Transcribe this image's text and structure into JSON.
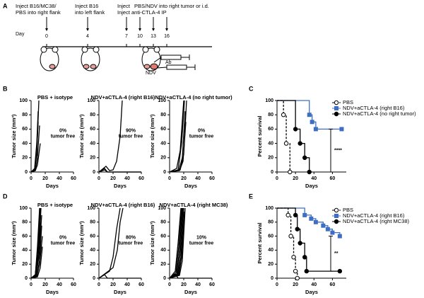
{
  "panel_a": {
    "label": "A",
    "notes": [
      "Inject B16/MC38/",
      "PBS into right flank",
      "Inject B16",
      "into left flank",
      "Inject",
      "PBS/NDV into right tumor or i.d.",
      "Inject anti-CTLA-4 IP"
    ],
    "day_label": "Day",
    "days": [
      0,
      4,
      7,
      10,
      13,
      16
    ],
    "ab_label": "Ab",
    "ndv_label": "NDV"
  },
  "chart_data": [
    {
      "type": "line",
      "panel_label": "B",
      "title": "PBS + isotype",
      "xlabel": "Days",
      "ylabel": "Tumor size (mm³)",
      "annotation": [
        "0%",
        "tumor free"
      ],
      "xlim": [
        0,
        60
      ],
      "ylim": [
        0,
        100
      ],
      "xticks": [
        0,
        20,
        40,
        60
      ],
      "yticks": [
        0,
        20,
        40,
        60,
        80,
        100
      ],
      "series": [
        {
          "color": "#000000",
          "x": [
            0,
            5,
            8,
            10
          ],
          "values": [
            0,
            5,
            40,
            85
          ]
        },
        {
          "color": "#000000",
          "x": [
            0,
            5,
            8,
            11
          ],
          "values": [
            0,
            3,
            25,
            100
          ]
        },
        {
          "color": "#000000",
          "x": [
            0,
            6,
            9,
            12
          ],
          "values": [
            0,
            2,
            20,
            65
          ]
        },
        {
          "color": "#000000",
          "x": [
            0,
            6,
            9,
            13
          ],
          "values": [
            0,
            2,
            10,
            40
          ]
        },
        {
          "color": "#000000",
          "x": [
            0,
            5,
            8,
            10
          ],
          "values": [
            0,
            4,
            30,
            70
          ]
        }
      ]
    },
    {
      "type": "line",
      "title": "NDV+aCTLA-4  (right B16)",
      "xlabel": "Days",
      "ylabel": "Tumor size (mm³)",
      "annotation": [
        "90%",
        "tumor free"
      ],
      "xlim": [
        0,
        60
      ],
      "ylim": [
        0,
        100
      ],
      "xticks": [
        0,
        20,
        40,
        60
      ],
      "yticks": [
        0,
        20,
        40,
        60,
        80,
        100
      ],
      "series": [
        {
          "color": "#000000",
          "x": [
            0,
            10,
            15,
            20,
            25,
            30,
            33
          ],
          "values": [
            0,
            8,
            2,
            3,
            15,
            50,
            100
          ]
        },
        {
          "color": "#000000",
          "x": [
            0,
            8,
            12,
            60
          ],
          "values": [
            0,
            5,
            0,
            0
          ]
        },
        {
          "color": "#000000",
          "x": [
            0,
            8,
            12,
            60
          ],
          "values": [
            0,
            3,
            0,
            0
          ]
        }
      ]
    },
    {
      "type": "line",
      "title": "NDV+aCTLA-4 (no right tumor)",
      "xlabel": "Days",
      "ylabel": "Tumor size (mm³)",
      "annotation": [
        "0%",
        "tumor free"
      ],
      "xlim": [
        0,
        60
      ],
      "ylim": [
        0,
        100
      ],
      "xticks": [
        0,
        20,
        40,
        60
      ],
      "yticks": [
        0,
        20,
        40,
        60,
        80,
        100
      ],
      "series": [
        {
          "color": "#000000",
          "x": [
            0,
            10,
            15,
            20
          ],
          "values": [
            0,
            5,
            30,
            100
          ]
        },
        {
          "color": "#000000",
          "x": [
            0,
            12,
            17,
            21
          ],
          "values": [
            0,
            3,
            40,
            100
          ]
        },
        {
          "color": "#000000",
          "x": [
            0,
            13,
            18,
            22
          ],
          "values": [
            0,
            2,
            20,
            85
          ]
        },
        {
          "color": "#000000",
          "x": [
            0,
            14,
            19,
            23
          ],
          "values": [
            0,
            2,
            15,
            70
          ]
        },
        {
          "color": "#000000",
          "x": [
            0,
            15,
            20,
            24
          ],
          "values": [
            0,
            3,
            25,
            100
          ]
        }
      ]
    },
    {
      "type": "survival",
      "panel_label": "C",
      "xlabel": "Days",
      "ylabel": "Percent survival",
      "annotation": [
        "****"
      ],
      "legend": "upper right",
      "xlim": [
        0,
        75
      ],
      "ylim": [
        0,
        100
      ],
      "xticks": [
        0,
        20,
        40,
        60
      ],
      "yticks": [
        0,
        20,
        40,
        60,
        80,
        100
      ],
      "series": [
        {
          "name": "PBS",
          "color": "#ffffff",
          "marker": "circle",
          "dashed": true,
          "x": [
            0,
            7,
            10,
            14
          ],
          "values": [
            100,
            80,
            40,
            0
          ]
        },
        {
          "name": "NDV+aCTLA-4 (right B16)",
          "color": "#3f6fc4",
          "marker": "square",
          "dashed": false,
          "x": [
            0,
            35,
            38,
            42,
            70
          ],
          "values": [
            100,
            80,
            70,
            60,
            60
          ]
        },
        {
          "name": "NDV+aCTLA-4 (no right tumor)",
          "color": "#000000",
          "marker": "circle",
          "dashed": false,
          "x": [
            0,
            20,
            25,
            30,
            35
          ],
          "values": [
            100,
            60,
            40,
            20,
            0
          ]
        }
      ]
    },
    {
      "type": "line",
      "panel_label": "D",
      "title": "PBS + isotype",
      "xlabel": "Days",
      "ylabel": "Tumor size (mm³)",
      "annotation": [
        "0%",
        "tumor free"
      ],
      "xlim": [
        0,
        60
      ],
      "ylim": [
        0,
        100
      ],
      "xticks": [
        0,
        20,
        40,
        60
      ],
      "yticks": [
        0,
        20,
        40,
        60,
        80,
        100
      ],
      "series": [
        {
          "color": "#000000",
          "x": [
            0,
            6,
            9,
            12
          ],
          "values": [
            0,
            5,
            45,
            100
          ]
        },
        {
          "color": "#000000",
          "x": [
            0,
            6,
            10,
            13
          ],
          "values": [
            0,
            4,
            35,
            100
          ]
        },
        {
          "color": "#000000",
          "x": [
            0,
            7,
            11,
            14
          ],
          "values": [
            0,
            3,
            40,
            100
          ]
        },
        {
          "color": "#000000",
          "x": [
            0,
            7,
            11,
            15
          ],
          "values": [
            0,
            3,
            30,
            90
          ]
        },
        {
          "color": "#000000",
          "x": [
            0,
            8,
            12,
            15
          ],
          "values": [
            0,
            2,
            25,
            75
          ]
        },
        {
          "color": "#000000",
          "x": [
            0,
            8,
            12,
            16
          ],
          "values": [
            0,
            2,
            20,
            60
          ]
        },
        {
          "color": "#000000",
          "x": [
            0,
            6,
            10,
            13
          ],
          "values": [
            0,
            5,
            50,
            100
          ]
        },
        {
          "color": "#000000",
          "x": [
            0,
            9,
            13,
            16
          ],
          "values": [
            0,
            2,
            15,
            45
          ]
        }
      ]
    },
    {
      "type": "line",
      "title": "NDV+aCTLA-4 (right B16)",
      "xlabel": "Days",
      "ylabel": "Tumor size (mm³)",
      "annotation": [
        "80%",
        "tumor free"
      ],
      "xlim": [
        0,
        60
      ],
      "ylim": [
        0,
        100
      ],
      "xticks": [
        0,
        20,
        40,
        60
      ],
      "yticks": [
        0,
        20,
        40,
        60,
        80,
        100
      ],
      "series": [
        {
          "color": "#000000",
          "x": [
            0,
            15,
            20,
            25,
            30
          ],
          "values": [
            0,
            10,
            30,
            70,
            100
          ]
        },
        {
          "color": "#000000",
          "x": [
            0,
            20,
            26,
            30,
            34
          ],
          "values": [
            0,
            15,
            40,
            80,
            100
          ]
        },
        {
          "color": "#000000",
          "x": [
            0,
            8,
            12,
            60
          ],
          "values": [
            0,
            5,
            0,
            0
          ]
        }
      ]
    },
    {
      "type": "line",
      "title": "NDV+aCTLA-4 (right MC38)",
      "xlabel": "Days",
      "ylabel": "Tumor size (mm³)",
      "annotation": [
        "10%",
        "tumor free"
      ],
      "xlim": [
        0,
        60
      ],
      "ylim": [
        0,
        100
      ],
      "xticks": [
        0,
        20,
        40,
        60
      ],
      "yticks": [
        0,
        20,
        40,
        60,
        80,
        100
      ],
      "series": [
        {
          "color": "#000000",
          "x": [
            0,
            8,
            12,
            16
          ],
          "values": [
            0,
            10,
            50,
            100
          ]
        },
        {
          "color": "#000000",
          "x": [
            0,
            9,
            13,
            17
          ],
          "values": [
            0,
            8,
            45,
            100
          ]
        },
        {
          "color": "#000000",
          "x": [
            0,
            10,
            14,
            18
          ],
          "values": [
            0,
            6,
            40,
            100
          ]
        },
        {
          "color": "#000000",
          "x": [
            0,
            11,
            15,
            19
          ],
          "values": [
            0,
            5,
            35,
            100
          ]
        },
        {
          "color": "#000000",
          "x": [
            0,
            12,
            16,
            20
          ],
          "values": [
            0,
            5,
            30,
            100
          ]
        },
        {
          "color": "#000000",
          "x": [
            0,
            13,
            17,
            21
          ],
          "values": [
            0,
            4,
            30,
            95
          ]
        },
        {
          "color": "#000000",
          "x": [
            0,
            14,
            18,
            22
          ],
          "values": [
            0,
            4,
            25,
            100
          ]
        },
        {
          "color": "#000000",
          "x": [
            0,
            8,
            12,
            60
          ],
          "values": [
            0,
            6,
            0,
            0
          ]
        }
      ]
    },
    {
      "type": "survival",
      "panel_label": "E",
      "xlabel": "Days",
      "ylabel": "Percent survival",
      "annotation": [
        "**"
      ],
      "legend": "upper right",
      "xlim": [
        0,
        75
      ],
      "ylim": [
        0,
        100
      ],
      "xticks": [
        0,
        20,
        40,
        60
      ],
      "yticks": [
        0,
        20,
        40,
        60,
        80,
        100
      ],
      "series": [
        {
          "name": "PBS",
          "color": "#ffffff",
          "marker": "circle",
          "dashed": true,
          "x": [
            0,
            12,
            15,
            18,
            20,
            22
          ],
          "values": [
            100,
            90,
            60,
            30,
            10,
            0
          ]
        },
        {
          "name": "NDV+aCTLA-4 (right B16)",
          "color": "#3f6fc4",
          "marker": "square",
          "dashed": false,
          "x": [
            0,
            30,
            37,
            42,
            50,
            55,
            60,
            68
          ],
          "values": [
            100,
            90,
            85,
            80,
            75,
            70,
            65,
            60
          ]
        },
        {
          "name": "NDV+aCTLA-4 (right MC38)",
          "color": "#000000",
          "marker": "circle",
          "dashed": false,
          "x": [
            0,
            20,
            22,
            25,
            30,
            32,
            68
          ],
          "values": [
            100,
            90,
            70,
            50,
            30,
            10,
            10
          ]
        }
      ]
    }
  ]
}
